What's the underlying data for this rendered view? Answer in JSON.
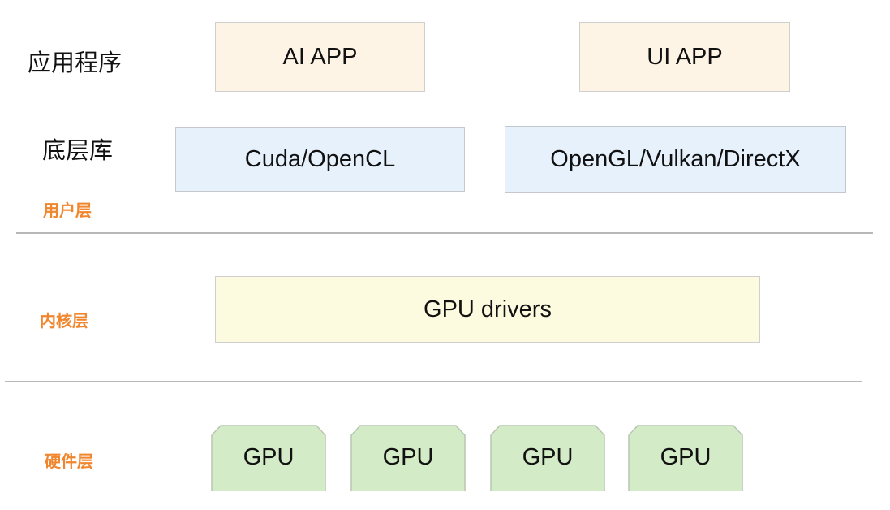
{
  "labels": {
    "applications": "应用程序",
    "libraries": "底层库",
    "user_layer": "用户层",
    "kernel_layer": "内核层",
    "hardware_layer": "硬件层"
  },
  "boxes": {
    "ai_app": "AI APP",
    "ui_app": "UI APP",
    "cuda": "Cuda/OpenCL",
    "graphics": "OpenGL/Vulkan/DirectX",
    "drivers": "GPU drivers"
  },
  "gpus": [
    "GPU",
    "GPU",
    "GPU",
    "GPU"
  ],
  "colors": {
    "tier_label": "#f0862e",
    "app_fill": "#fdf4e6",
    "lib_fill": "#e6f1fc",
    "driver_fill": "#fdfbdf",
    "gpu_fill": "#d3ebc6"
  }
}
